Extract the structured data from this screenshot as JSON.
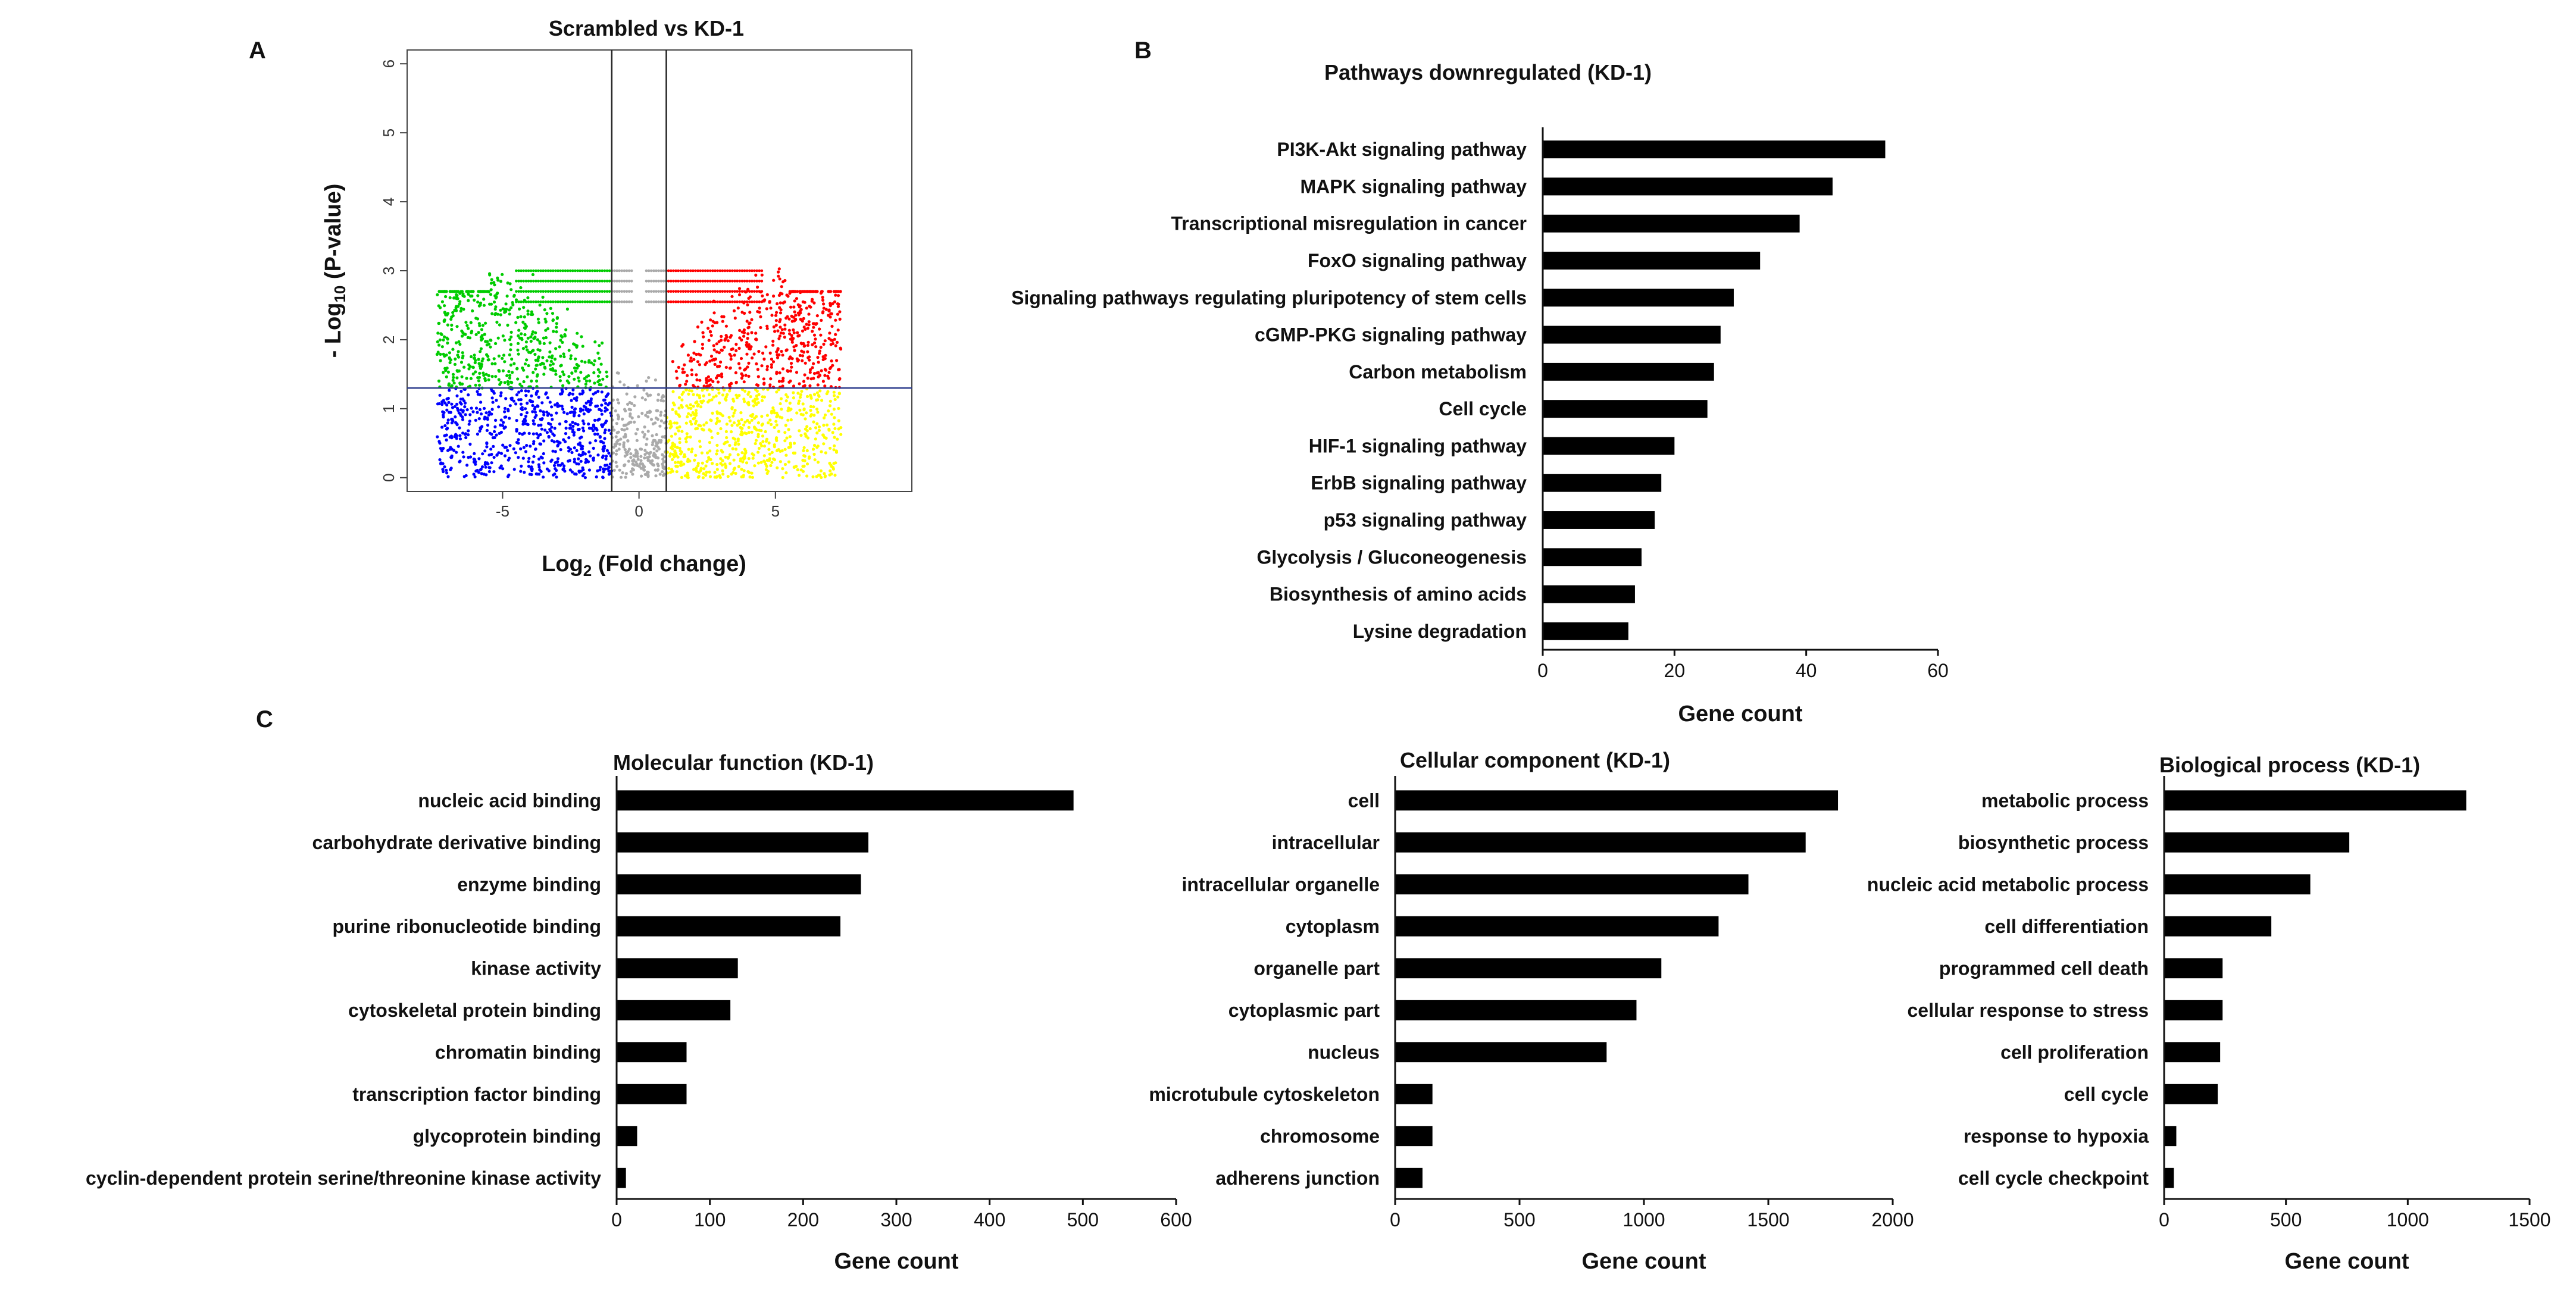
{
  "panel_labels": {
    "a": "A",
    "b": "B",
    "c": "C"
  },
  "colors": {
    "bar": "#000000",
    "up": "#ff0000",
    "down": "#00cc00",
    "ns_up": "#ffff00",
    "ns_down": "#0000ff",
    "ns": "#aaaaaa"
  },
  "chart_data": [
    {
      "type": "scatter",
      "title": "Scrambled vs KD-1",
      "xlabel_main": "Log",
      "xlabel_sub": "2",
      "xlabel_rest": " (Fold change)",
      "ylabel_pre": "- Log",
      "ylabel_sub": "10",
      "ylabel_rest": " (P-value)",
      "xlim": [
        -8.5,
        10
      ],
      "ylim": [
        -0.2,
        6.2
      ],
      "xticks": [
        -5,
        0,
        5
      ],
      "yticks": [
        0,
        1,
        2,
        3,
        4,
        5,
        6
      ],
      "vlines": [
        -1,
        1
      ],
      "hline": 1.3,
      "groups": [
        "up (red)",
        "down (green)",
        "ns low-p (yellow)",
        "ns low-p (blue)",
        "ns small change (gray)"
      ]
    },
    {
      "type": "bar",
      "orientation": "horizontal",
      "title": "Pathways downregulated (KD-1)",
      "xlabel": "Gene count",
      "xlim": [
        0,
        60
      ],
      "xticks": [
        0,
        20,
        40,
        60
      ],
      "categories": [
        "PI3K-Akt signaling pathway",
        "MAPK signaling pathway",
        "Transcriptional misregulation in cancer",
        "FoxO signaling pathway",
        "Signaling pathways regulating pluripotency of stem cells",
        "cGMP-PKG signaling pathway",
        "Carbon metabolism",
        "Cell cycle",
        "HIF-1 signaling pathway",
        "ErbB signaling pathway",
        "p53 signaling pathway",
        "Glycolysis / Gluconeogenesis",
        "Biosynthesis of amino acids",
        "Lysine degradation"
      ],
      "values": [
        52,
        44,
        39,
        33,
        29,
        27,
        26,
        25,
        20,
        18,
        17,
        15,
        14,
        13
      ]
    },
    {
      "type": "bar",
      "orientation": "horizontal",
      "title": "Molecular function (KD-1)",
      "xlabel": "Gene count",
      "xlim": [
        0,
        600
      ],
      "xticks": [
        0,
        100,
        200,
        300,
        400,
        500,
        600
      ],
      "categories": [
        "nucleic acid binding",
        "carbohydrate derivative binding",
        "enzyme binding",
        "purine ribonucleotide binding",
        "kinase activity",
        "cytoskeletal protein binding",
        "chromatin binding",
        "transcription factor binding",
        "glycoprotein binding",
        "cyclin-dependent protein serine/threonine kinase activity"
      ],
      "values": [
        490,
        270,
        262,
        240,
        130,
        122,
        75,
        75,
        22,
        10
      ]
    },
    {
      "type": "bar",
      "orientation": "horizontal",
      "title": "Cellular component (KD-1)",
      "xlabel": "Gene count",
      "xlim": [
        0,
        2000
      ],
      "xticks": [
        0,
        500,
        1000,
        1500,
        2000
      ],
      "categories": [
        "cell",
        "intracellular",
        "intracellular organelle",
        "cytoplasm",
        "organelle part",
        "cytoplasmic part",
        "nucleus",
        "microtubule cytoskeleton",
        "chromosome",
        "adherens junction"
      ],
      "values": [
        1780,
        1650,
        1420,
        1300,
        1070,
        970,
        850,
        150,
        150,
        110
      ]
    },
    {
      "type": "bar",
      "orientation": "horizontal",
      "title": "Biological process (KD-1)",
      "xlabel": "Gene count",
      "xlim": [
        0,
        1500
      ],
      "xticks": [
        0,
        500,
        1000,
        1500
      ],
      "categories": [
        "metabolic process",
        "biosynthetic process",
        "nucleic acid metabolic process",
        "cell differentiation",
        "programmed cell death",
        "cellular response to stress",
        "cell proliferation",
        "cell cycle",
        "response to hypoxia",
        "cell cycle checkpoint"
      ],
      "values": [
        1240,
        760,
        600,
        440,
        240,
        240,
        230,
        220,
        50,
        40
      ]
    }
  ]
}
